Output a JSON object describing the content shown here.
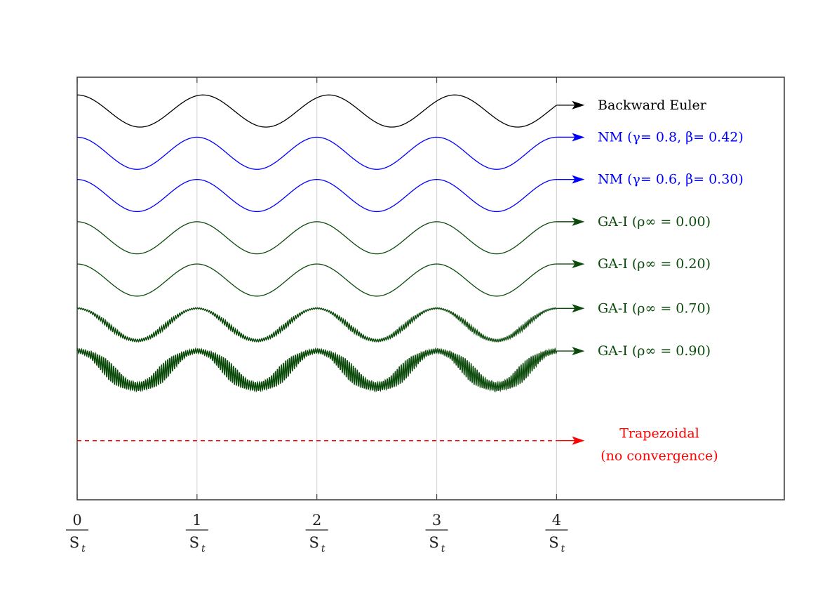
{
  "chart_data": {
    "type": "line",
    "title": "",
    "xlabel": "",
    "ylabel": "",
    "x_ticks": [
      {
        "value": 0,
        "num": "0",
        "den": "S",
        "sub": "t"
      },
      {
        "value": 1,
        "num": "1",
        "den": "S",
        "sub": "t"
      },
      {
        "value": 2,
        "num": "2",
        "den": "S",
        "sub": "t"
      },
      {
        "value": 3,
        "num": "3",
        "den": "S",
        "sub": "t"
      },
      {
        "value": 4,
        "num": "4",
        "den": "S",
        "sub": "t"
      }
    ],
    "xlim": [
      0,
      5.9
    ],
    "ylim": [
      0,
      10
    ],
    "grid": "vertical",
    "series": [
      {
        "name": "Backward Euler",
        "color": "#000000",
        "offset": 9.2,
        "amplitude": 0.38,
        "phase": 0.0,
        "period": 1.05,
        "noise_amplitude": 0,
        "style": "solid"
      },
      {
        "name": "NM (γ= 0.8, β= 0.42)",
        "color": "#0000ff",
        "offset": 8.2,
        "amplitude": 0.38,
        "phase": 0.0,
        "period": 1.0,
        "noise_amplitude": 0,
        "style": "solid"
      },
      {
        "name": "NM (γ= 0.6, β= 0.30)",
        "color": "#0000ff",
        "offset": 7.2,
        "amplitude": 0.38,
        "phase": 0.0,
        "period": 1.0,
        "noise_amplitude": 0,
        "style": "solid"
      },
      {
        "name": "GA-I (ρ∞ = 0.00)",
        "color": "#0b4a0b",
        "offset": 6.2,
        "amplitude": 0.38,
        "phase": 0.0,
        "period": 1.0,
        "noise_amplitude": 0,
        "style": "solid"
      },
      {
        "name": "GA-I (ρ∞ = 0.20)",
        "color": "#0b4a0b",
        "offset": 5.2,
        "amplitude": 0.38,
        "phase": 0.0,
        "period": 1.0,
        "noise_amplitude": 0,
        "style": "solid"
      },
      {
        "name": "GA-I (ρ∞ = 0.70)",
        "color": "#0b4a0b",
        "offset": 4.15,
        "amplitude": 0.38,
        "phase": 0.0,
        "period": 1.0,
        "noise_amplitude": 0.09,
        "style": "solid"
      },
      {
        "name": "GA-I (ρ∞ = 0.90)",
        "color": "#0b4a0b",
        "offset": 3.1,
        "amplitude": 0.42,
        "phase": 0.0,
        "period": 1.0,
        "noise_amplitude": 0.3,
        "style": "solid"
      },
      {
        "name": "Trapezoidal",
        "name2": "(no convergence)",
        "color": "#ff0000",
        "offset": 1.4,
        "amplitude": 0,
        "phase": 0,
        "period": 1.0,
        "noise_amplitude": 0,
        "style": "dashed"
      }
    ]
  }
}
